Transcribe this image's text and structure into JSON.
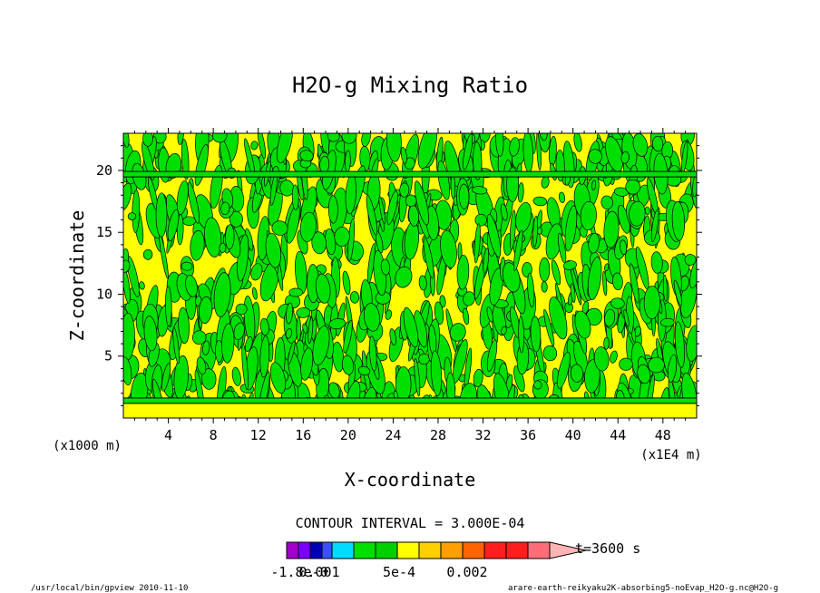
{
  "chart_data": {
    "type": "heatmap",
    "title": "H2O-g Mixing Ratio",
    "xlabel": "X-coordinate",
    "ylabel": "Z-coordinate",
    "x_unit": "(x1E4 m)",
    "y_unit": "(x1000 m)",
    "xlim": [
      0,
      51
    ],
    "ylim": [
      0,
      23
    ],
    "x_ticks": [
      "4",
      "8",
      "12",
      "16",
      "20",
      "24",
      "28",
      "32",
      "36",
      "40",
      "44",
      "48"
    ],
    "x_tick_values": [
      4,
      8,
      12,
      16,
      20,
      24,
      28,
      32,
      36,
      40,
      44,
      48
    ],
    "y_ticks": [
      "5",
      "10",
      "15",
      "20"
    ],
    "y_tick_values": [
      5,
      10,
      15,
      20
    ],
    "contour_interval_text": "CONTOUR INTERVAL = 3.000E-04",
    "time_label": "t=3600 s",
    "colorbar_labels": [
      "-1.8e-0",
      "0.001",
      "5e-4",
      "0.002"
    ],
    "colorbar_colors": [
      "#a000c8",
      "#7c00ff",
      "#0000b4",
      "#3c50ff",
      "#00dcff",
      "#00e000",
      "#00d000",
      "#ffff00",
      "#ffd000",
      "#ffa000",
      "#ff6400",
      "#ff1e1e",
      "#ff1e1e",
      "#ff6e78",
      "#ffb4b4"
    ],
    "fill_colors": {
      "low": "#00e000",
      "mid": "#ffff00"
    },
    "bands": [
      {
        "name": "near-surface line",
        "z": 1.4
      },
      {
        "name": "upper line",
        "z": 19.7
      }
    ]
  },
  "footer": {
    "left": "/usr/local/bin/gpview  2010-11-10",
    "right": "arare-earth-reikyaku2K-absorbing5-noEvap_H2O-g.nc@H2O-g"
  }
}
